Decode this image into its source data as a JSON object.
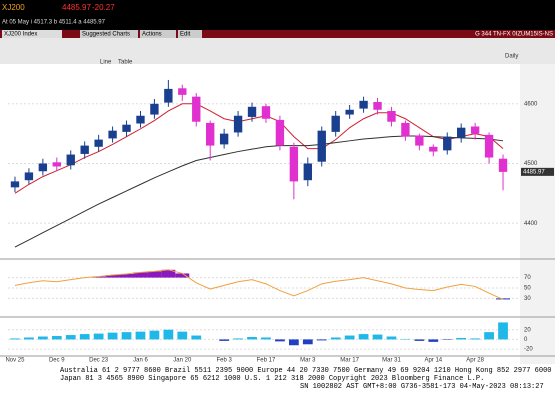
{
  "header": {
    "ticker": "XJ200",
    "price": "4485.97",
    "change": "-20.27",
    "quote": "At 05 May  i 4517.3  b 4511.4  a 4485.97"
  },
  "toolbar": {
    "security": "XJ200 Index",
    "suggested": "Suggested Charts",
    "actions": "Actions",
    "edit": "Edit",
    "right_info": "G 344 TN-FX 0IZUM15IS-NS",
    "period": "Daily",
    "table": "Table",
    "line": "Line"
  },
  "chart_data": [
    {
      "type": "candlestick",
      "categories": [
        "Nov 25",
        null,
        null,
        "Dec 9",
        null,
        null,
        "Dec 23",
        null,
        null,
        "Jan 6",
        null,
        null,
        "Jan 20",
        null,
        null,
        "Feb 3",
        null,
        null,
        "Feb 17",
        null,
        null,
        "Mar 3",
        null,
        null,
        "Mar 17",
        null,
        null,
        "Mar 31",
        null,
        null,
        "Apr 14",
        null,
        null,
        "Apr 28",
        null,
        null
      ],
      "open": [
        4460,
        4472,
        4487,
        4502,
        4497,
        4516,
        4528,
        4542,
        4553,
        4567,
        4582,
        4602,
        4626,
        4612,
        4568,
        4532,
        4552,
        4578,
        4596,
        4573,
        4528,
        4472,
        4503,
        4553,
        4582,
        4592,
        4603,
        4588,
        4568,
        4547,
        4528,
        4522,
        4543,
        4562,
        4548,
        4508
      ],
      "high": [
        4478,
        4492,
        4508,
        4510,
        4522,
        4537,
        4548,
        4562,
        4572,
        4588,
        4608,
        4640,
        4632,
        4618,
        4572,
        4558,
        4588,
        4602,
        4600,
        4580,
        4535,
        4510,
        4562,
        4588,
        4598,
        4612,
        4610,
        4595,
        4572,
        4550,
        4532,
        4552,
        4567,
        4568,
        4552,
        4515
      ],
      "low": [
        4452,
        4465,
        4480,
        4488,
        4490,
        4508,
        4520,
        4535,
        4545,
        4560,
        4575,
        4595,
        4605,
        4562,
        4505,
        4525,
        4545,
        4570,
        4568,
        4522,
        4440,
        4462,
        4495,
        4545,
        4575,
        4585,
        4582,
        4562,
        4538,
        4522,
        4512,
        4515,
        4535,
        4540,
        4500,
        4455
      ],
      "close": [
        4470,
        4485,
        4500,
        4495,
        4515,
        4530,
        4540,
        4555,
        4565,
        4580,
        4600,
        4625,
        4615,
        4570,
        4530,
        4550,
        4580,
        4595,
        4575,
        4530,
        4470,
        4500,
        4555,
        4580,
        4590,
        4605,
        4590,
        4570,
        4545,
        4530,
        4520,
        4545,
        4560,
        4550,
        4510,
        4485.97
      ],
      "up_color": "#1a3f8f",
      "down_color": "#e030d0",
      "lines": [
        {
          "color": "#d02030",
          "values": [
            4450,
            4465,
            4478,
            4488,
            4498,
            4510,
            4520,
            4532,
            4545,
            4558,
            4572,
            4588,
            4600,
            4600,
            4588,
            4575,
            4570,
            4575,
            4580,
            4570,
            4545,
            4525,
            4525,
            4540,
            4560,
            4575,
            4585,
            4585,
            4575,
            4560,
            4545,
            4540,
            4545,
            4550,
            4545,
            4525
          ]
        },
        {
          "color": "#303030",
          "values": [
            4360,
            4372,
            4384,
            4396,
            4408,
            4420,
            4432,
            4443,
            4454,
            4465,
            4476,
            4486,
            4496,
            4505,
            4510,
            4515,
            4520,
            4524,
            4528,
            4530,
            4530,
            4530,
            4532,
            4535,
            4538,
            4541,
            4543,
            4545,
            4546,
            4546,
            4545,
            4544,
            4543,
            4542,
            4541,
            4538
          ]
        }
      ],
      "ylim": [
        4345,
        4660
      ],
      "yticks": [
        4400,
        4500,
        4600
      ]
    },
    {
      "type": "rsi",
      "values": [
        55,
        60,
        64,
        62,
        66,
        70,
        72,
        75,
        77,
        80,
        82,
        85,
        78,
        60,
        48,
        55,
        62,
        66,
        58,
        45,
        35,
        45,
        58,
        63,
        66,
        70,
        64,
        58,
        50,
        47,
        45,
        52,
        57,
        53,
        40,
        28
      ],
      "color": "#f0a040",
      "fill_color": "#8a1ac0",
      "ylim": [
        0,
        100
      ],
      "yticks": [
        30,
        50,
        70
      ]
    },
    {
      "type": "bar",
      "values": [
        2,
        4,
        6,
        7,
        9,
        11,
        12,
        14,
        15,
        16,
        18,
        20,
        16,
        8,
        0,
        -3,
        2,
        5,
        4,
        -4,
        -12,
        -10,
        -2,
        4,
        8,
        11,
        10,
        6,
        1,
        -3,
        -5,
        -1,
        3,
        2,
        15,
        35
      ],
      "color": "#20b8e8",
      "negative_color": "#2040c0",
      "ylim": [
        -30,
        40
      ],
      "yticks": [
        -20,
        0,
        20
      ]
    }
  ],
  "footer": {
    "lines": [
      "Australia 61 2 9777 8600 Brazil 5511 2395 9000 Europe 44 20 7330 7500 Germany 49 69 9204 1210 Hong Kong 852 2977 6000",
      "Japan 81 3 4565 8900       Singapore 65 6212 1000       U.S. 1 212 318 2000       Copyright 2023 Bloomberg Finance L.P.",
      "SN 1002802 AST  GMT+8:00 G736-3581-173 04-May-2023 08:13:27"
    ]
  }
}
